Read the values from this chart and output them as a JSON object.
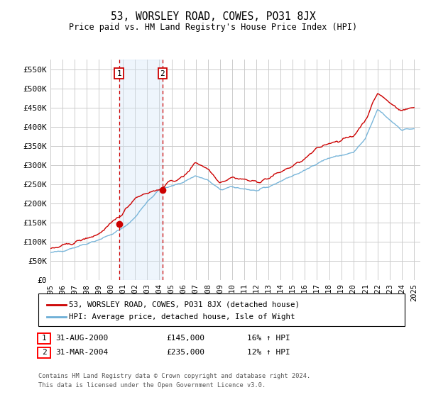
{
  "title": "53, WORSLEY ROAD, COWES, PO31 8JX",
  "subtitle": "Price paid vs. HM Land Registry's House Price Index (HPI)",
  "ylim": [
    0,
    575000
  ],
  "yticks": [
    0,
    50000,
    100000,
    150000,
    200000,
    250000,
    300000,
    350000,
    400000,
    450000,
    500000,
    550000
  ],
  "ytick_labels": [
    "£0",
    "£50K",
    "£100K",
    "£150K",
    "£200K",
    "£250K",
    "£300K",
    "£350K",
    "£400K",
    "£450K",
    "£500K",
    "£550K"
  ],
  "xlim_start": 1995.0,
  "xlim_end": 2025.5,
  "hpi_color": "#6baed6",
  "property_color": "#cc0000",
  "vline1_x": 2000.67,
  "vline2_x": 2004.25,
  "vline_color": "#cc0000",
  "shade_color": "#d0e4f7",
  "legend_label1": "53, WORSLEY ROAD, COWES, PO31 8JX (detached house)",
  "legend_label2": "HPI: Average price, detached house, Isle of Wight",
  "table_row1": [
    "1",
    "31-AUG-2000",
    "£145,000",
    "16% ↑ HPI"
  ],
  "table_row2": [
    "2",
    "31-MAR-2004",
    "£235,000",
    "12% ↑ HPI"
  ],
  "footer1": "Contains HM Land Registry data © Crown copyright and database right 2024.",
  "footer2": "This data is licensed under the Open Government Licence v3.0.",
  "bg_color": "#ffffff",
  "grid_color": "#cccccc",
  "hpi_anchors_x": [
    1995,
    1996,
    1997,
    1998,
    1999,
    2000,
    2001,
    2002,
    2003,
    2004,
    2005,
    2006,
    2007,
    2008,
    2009,
    2010,
    2011,
    2012,
    2013,
    2014,
    2015,
    2016,
    2017,
    2018,
    2019,
    2020,
    2021,
    2022,
    2023,
    2024,
    2025
  ],
  "hpi_anchors_y": [
    70000,
    76000,
    85000,
    95000,
    105000,
    118000,
    135000,
    163000,
    205000,
    235000,
    244000,
    256000,
    272000,
    260000,
    235000,
    242000,
    238000,
    232000,
    242000,
    258000,
    272000,
    285000,
    305000,
    318000,
    325000,
    332000,
    368000,
    445000,
    418000,
    392000,
    395000
  ],
  "prop_anchors_x": [
    1995,
    1996,
    1997,
    1998,
    1999,
    2000,
    2001,
    2002,
    2003,
    2004,
    2005,
    2006,
    2007,
    2008,
    2009,
    2010,
    2011,
    2012,
    2013,
    2014,
    2015,
    2016,
    2017,
    2018,
    2019,
    2020,
    2021,
    2022,
    2023,
    2024,
    2025
  ],
  "prop_anchors_y": [
    80000,
    88000,
    98000,
    108000,
    120000,
    145000,
    175000,
    215000,
    228000,
    235000,
    258000,
    268000,
    308000,
    290000,
    255000,
    268000,
    262000,
    255000,
    265000,
    282000,
    297000,
    315000,
    342000,
    358000,
    365000,
    375000,
    418000,
    488000,
    462000,
    442000,
    450000
  ],
  "sale1_x": 2000.67,
  "sale1_y": 145000,
  "sale2_x": 2004.25,
  "sale2_y": 235000
}
